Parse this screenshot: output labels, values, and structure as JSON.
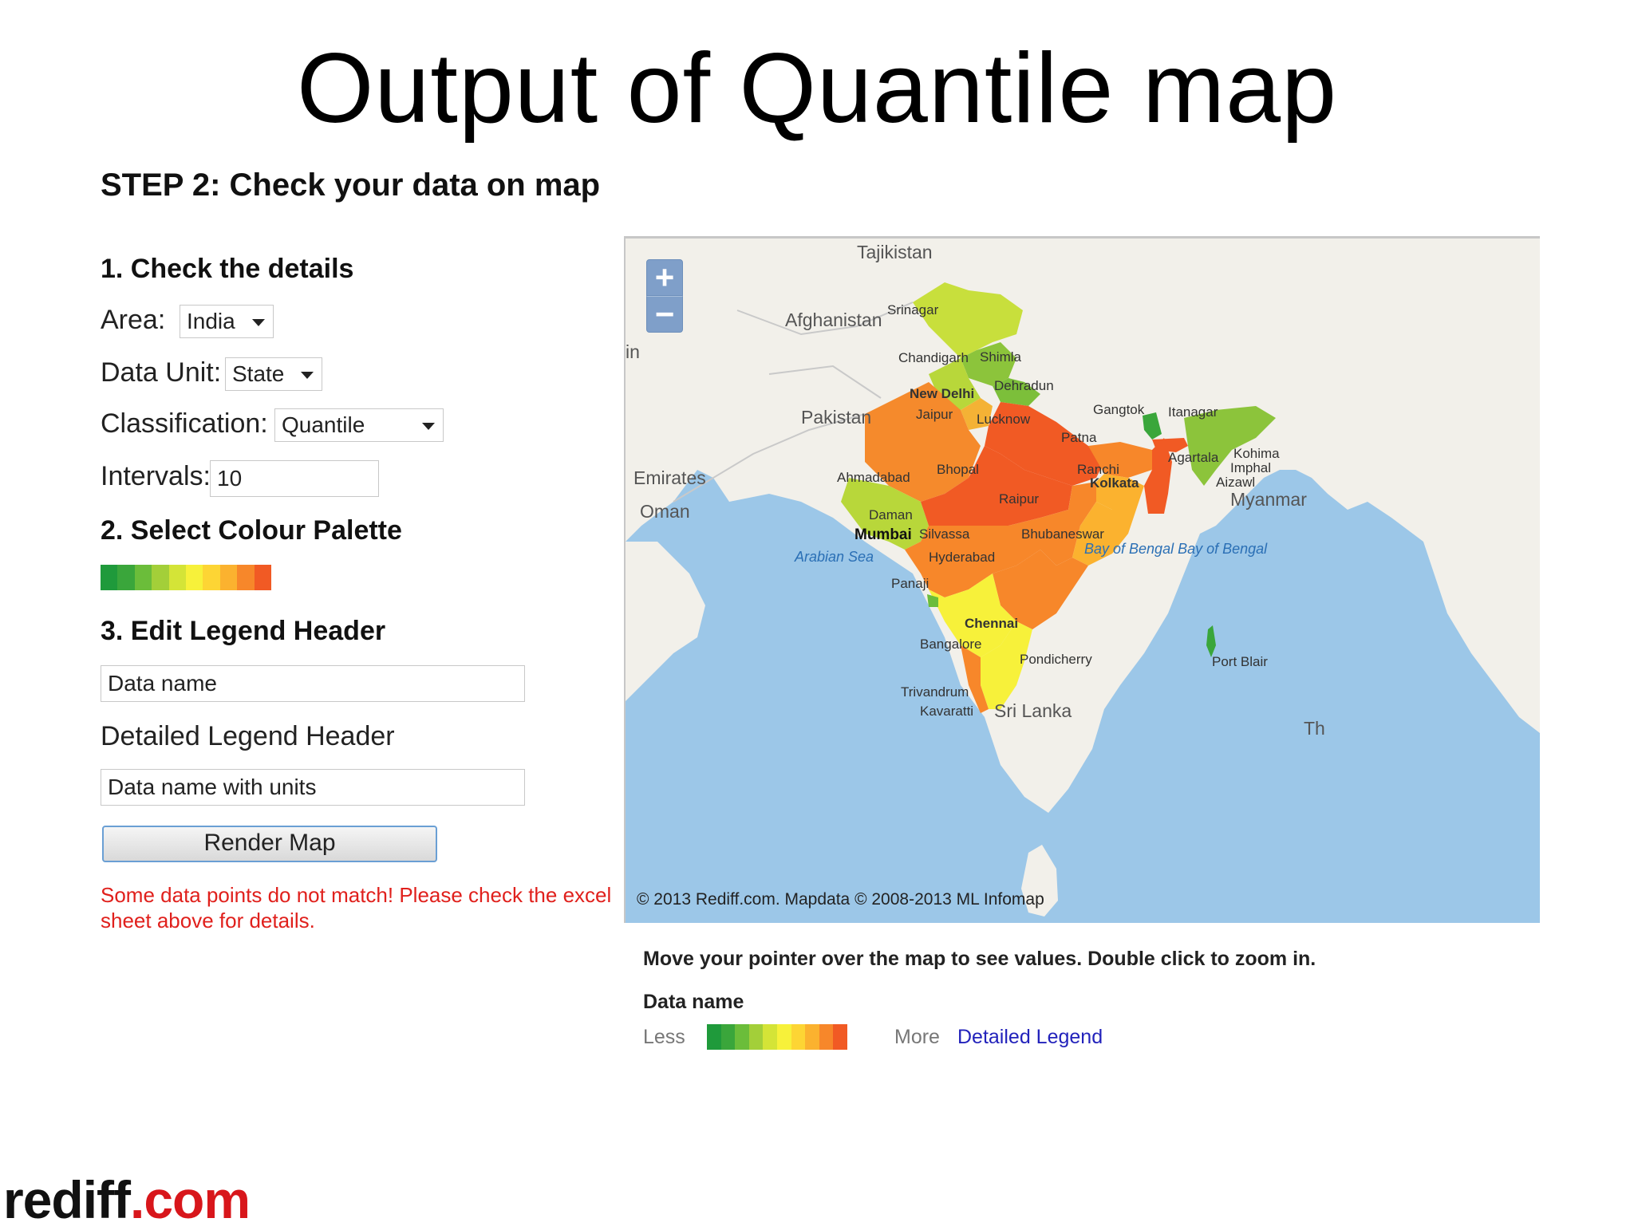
{
  "slide_title": "Output of Quantile map",
  "step_heading": "STEP 2: Check your data on map",
  "section1": {
    "heading": "1. Check the details",
    "area_label": "Area:",
    "area_value": "India",
    "data_unit_label": "Data Unit:",
    "data_unit_value": "State",
    "classification_label": "Classification:",
    "classification_value": "Quantile",
    "intervals_label": "Intervals:",
    "intervals_value": "10"
  },
  "section2": {
    "heading": "2. Select Colour Palette",
    "palette_colors": [
      "#1f9a3b",
      "#3aa63b",
      "#6bbd3a",
      "#a3cf39",
      "#d4e437",
      "#f7f13a",
      "#fdd534",
      "#fbb22f",
      "#f7872a",
      "#f15a24"
    ]
  },
  "section3": {
    "heading": "3. Edit Legend Header",
    "legend_header_value": "Data name",
    "detailed_label": "Detailed Legend Header",
    "detailed_value": "Data name with units"
  },
  "render_button": "Render Map",
  "error_message": "Some data points do not match! Please check the excel sheet above for details.",
  "map": {
    "zoom_in": "+",
    "zoom_out": "−",
    "copyright": "© 2013 Rediff.com. Mapdata © 2008-2013 ML Infomap",
    "labels": {
      "tajikistan": "Tajikistan",
      "afghanistan": "Afghanistan",
      "pakistan": "Pakistan",
      "emirates": "Emirates",
      "oman": "Oman",
      "myanmar": "Myanmar",
      "sri_lanka": "Sri Lanka",
      "arabian_sea": "Arabian Sea",
      "bay_of_bengal": "Bay of Bengal Bay of Bengal",
      "in_fragment": "in",
      "th_fragment": "Th",
      "srinagar": "Srinagar",
      "chandigarh": "Chandigarh",
      "shimla": "Shimla",
      "dehradun": "Dehradun",
      "new_delhi": "New Delhi",
      "jaipur": "Jaipur",
      "lucknow": "Lucknow",
      "gangtok": "Gangtok",
      "itanagar": "Itanagar",
      "patna": "Patna",
      "kohima": "Kohima",
      "agartala": "Agartala",
      "imphal": "Imphal",
      "aizawl": "Aizawl",
      "ahmadabad": "Ahmadabad",
      "bhopal": "Bhopal",
      "ranchi": "Ranchi",
      "kolkata": "Kolkata",
      "raipur": "Raipur",
      "daman": "Daman",
      "mumbai": "Mumbai",
      "silvassa": "Silvassa",
      "bhubaneswar": "Bhubaneswar",
      "hyderabad": "Hyderabad",
      "panaji": "Panaji",
      "chennai": "Chennai",
      "bangalore": "Bangalore",
      "pondicherry": "Pondicherry",
      "port_blair": "Port Blair",
      "trivandrum": "Trivandrum",
      "kavaratti": "Kavaratti"
    }
  },
  "legend": {
    "hint": "Move your pointer over the map to see values. Double click to zoom in.",
    "title": "Data name",
    "less": "Less",
    "more": "More",
    "detailed_link": "Detailed Legend",
    "ramp_colors": [
      "#1f9a3b",
      "#3aa63b",
      "#6bbd3a",
      "#a3cf39",
      "#d4e437",
      "#f7f13a",
      "#fdd534",
      "#fbb22f",
      "#f7872a",
      "#f15a24"
    ]
  },
  "logo": {
    "part1": "rediff",
    "part2": ".com"
  }
}
